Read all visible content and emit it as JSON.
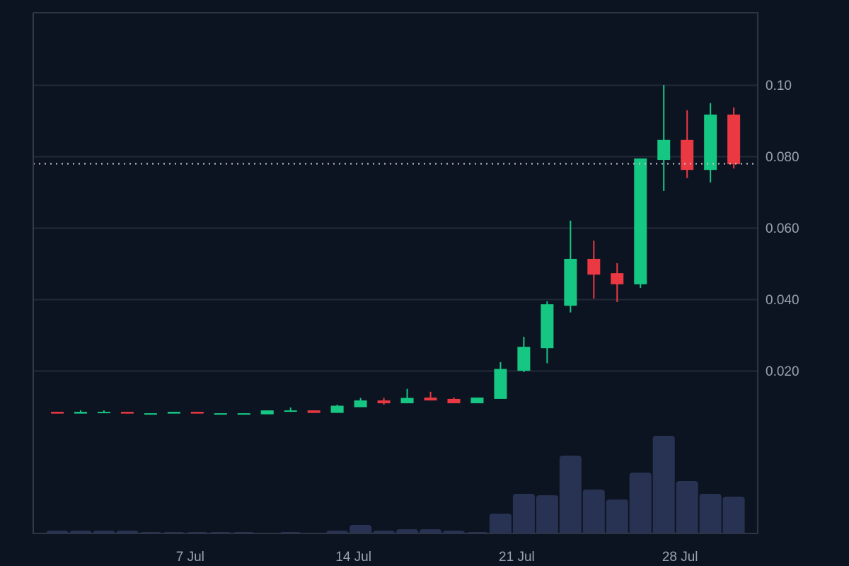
{
  "chart_data": {
    "type": "candlestick",
    "title": "",
    "xlabel": "",
    "ylabel": "",
    "ylim": [
      0,
      0.12
    ],
    "grid": true,
    "legend": null,
    "y_ticks": [
      {
        "label": "0.10",
        "value": 0.1
      },
      {
        "label": "0.080",
        "value": 0.08
      },
      {
        "label": "0.060",
        "value": 0.06
      },
      {
        "label": "0.040",
        "value": 0.04
      },
      {
        "label": "0.020",
        "value": 0.02
      }
    ],
    "x_ticks": [
      {
        "label": "7 Jul",
        "index": 6
      },
      {
        "label": "14 Jul",
        "index": 13
      },
      {
        "label": "21 Jul",
        "index": 20
      },
      {
        "label": "28 Jul",
        "index": 27
      }
    ],
    "last_price": 0.0781,
    "x": [
      "1 Jul",
      "2 Jul",
      "3 Jul",
      "4 Jul",
      "5 Jul",
      "6 Jul",
      "7 Jul",
      "8 Jul",
      "9 Jul",
      "10 Jul",
      "11 Jul",
      "12 Jul",
      "13 Jul",
      "14 Jul",
      "15 Jul",
      "16 Jul",
      "17 Jul",
      "18 Jul",
      "19 Jul",
      "20 Jul",
      "21 Jul",
      "22 Jul",
      "23 Jul",
      "24 Jul",
      "25 Jul",
      "26 Jul",
      "27 Jul",
      "28 Jul",
      "29 Jul",
      "30 Jul"
    ],
    "ohlc": [
      {
        "o": 0.0085,
        "h": 0.0085,
        "l": 0.008,
        "c": 0.008
      },
      {
        "o": 0.008,
        "h": 0.0089,
        "l": 0.008,
        "c": 0.0085
      },
      {
        "o": 0.0082,
        "h": 0.0089,
        "l": 0.0082,
        "c": 0.0085
      },
      {
        "o": 0.0085,
        "h": 0.0085,
        "l": 0.008,
        "c": 0.008
      },
      {
        "o": 0.0078,
        "h": 0.0081,
        "l": 0.0078,
        "c": 0.0081
      },
      {
        "o": 0.008,
        "h": 0.0085,
        "l": 0.008,
        "c": 0.0085
      },
      {
        "o": 0.0085,
        "h": 0.0085,
        "l": 0.008,
        "c": 0.008
      },
      {
        "o": 0.0078,
        "h": 0.0081,
        "l": 0.0078,
        "c": 0.0081
      },
      {
        "o": 0.0079,
        "h": 0.0081,
        "l": 0.0079,
        "c": 0.0081
      },
      {
        "o": 0.0078,
        "h": 0.0089,
        "l": 0.0078,
        "c": 0.0089
      },
      {
        "o": 0.0085,
        "h": 0.0097,
        "l": 0.0085,
        "c": 0.0089
      },
      {
        "o": 0.0089,
        "h": 0.0089,
        "l": 0.0082,
        "c": 0.0082
      },
      {
        "o": 0.0082,
        "h": 0.0105,
        "l": 0.0082,
        "c": 0.0102
      },
      {
        "o": 0.0098,
        "h": 0.0124,
        "l": 0.0098,
        "c": 0.0117
      },
      {
        "o": 0.0117,
        "h": 0.0124,
        "l": 0.0105,
        "c": 0.0109
      },
      {
        "o": 0.0109,
        "h": 0.0149,
        "l": 0.0109,
        "c": 0.0124
      },
      {
        "o": 0.0125,
        "h": 0.0141,
        "l": 0.0117,
        "c": 0.0117
      },
      {
        "o": 0.0121,
        "h": 0.0125,
        "l": 0.0109,
        "c": 0.0109
      },
      {
        "o": 0.0109,
        "h": 0.0125,
        "l": 0.0109,
        "c": 0.0125
      },
      {
        "o": 0.0121,
        "h": 0.0224,
        "l": 0.0121,
        "c": 0.0205
      },
      {
        "o": 0.02,
        "h": 0.0295,
        "l": 0.0196,
        "c": 0.0267
      },
      {
        "o": 0.0263,
        "h": 0.0394,
        "l": 0.0221,
        "c": 0.0386
      },
      {
        "o": 0.0382,
        "h": 0.062,
        "l": 0.0363,
        "c": 0.0513
      },
      {
        "o": 0.0513,
        "h": 0.0564,
        "l": 0.0402,
        "c": 0.0469
      },
      {
        "o": 0.0473,
        "h": 0.0501,
        "l": 0.0392,
        "c": 0.0442
      },
      {
        "o": 0.0442,
        "h": 0.0794,
        "l": 0.0432,
        "c": 0.0794
      },
      {
        "o": 0.079,
        "h": 0.1,
        "l": 0.0703,
        "c": 0.0846
      },
      {
        "o": 0.0846,
        "h": 0.0929,
        "l": 0.0739,
        "c": 0.0762
      },
      {
        "o": 0.0762,
        "h": 0.0949,
        "l": 0.0727,
        "c": 0.0917
      },
      {
        "o": 0.0917,
        "h": 0.0937,
        "l": 0.0766,
        "c": 0.0778
      }
    ],
    "volume_relative": [
      4,
      4,
      4,
      4,
      2,
      2,
      2,
      2,
      2,
      0,
      2,
      0,
      4,
      12,
      4,
      6,
      6,
      4,
      2,
      28,
      56,
      54,
      110,
      62,
      48,
      86,
      138,
      74,
      56,
      52
    ],
    "colors": {
      "up": "#16c784",
      "down": "#ea3943",
      "volume": "#283353",
      "grid": "#222a37",
      "border": "#2c3445",
      "last_price_line": "#c3c8d2",
      "axis_text": "#9aa2b3",
      "background": "#0d1421"
    }
  }
}
